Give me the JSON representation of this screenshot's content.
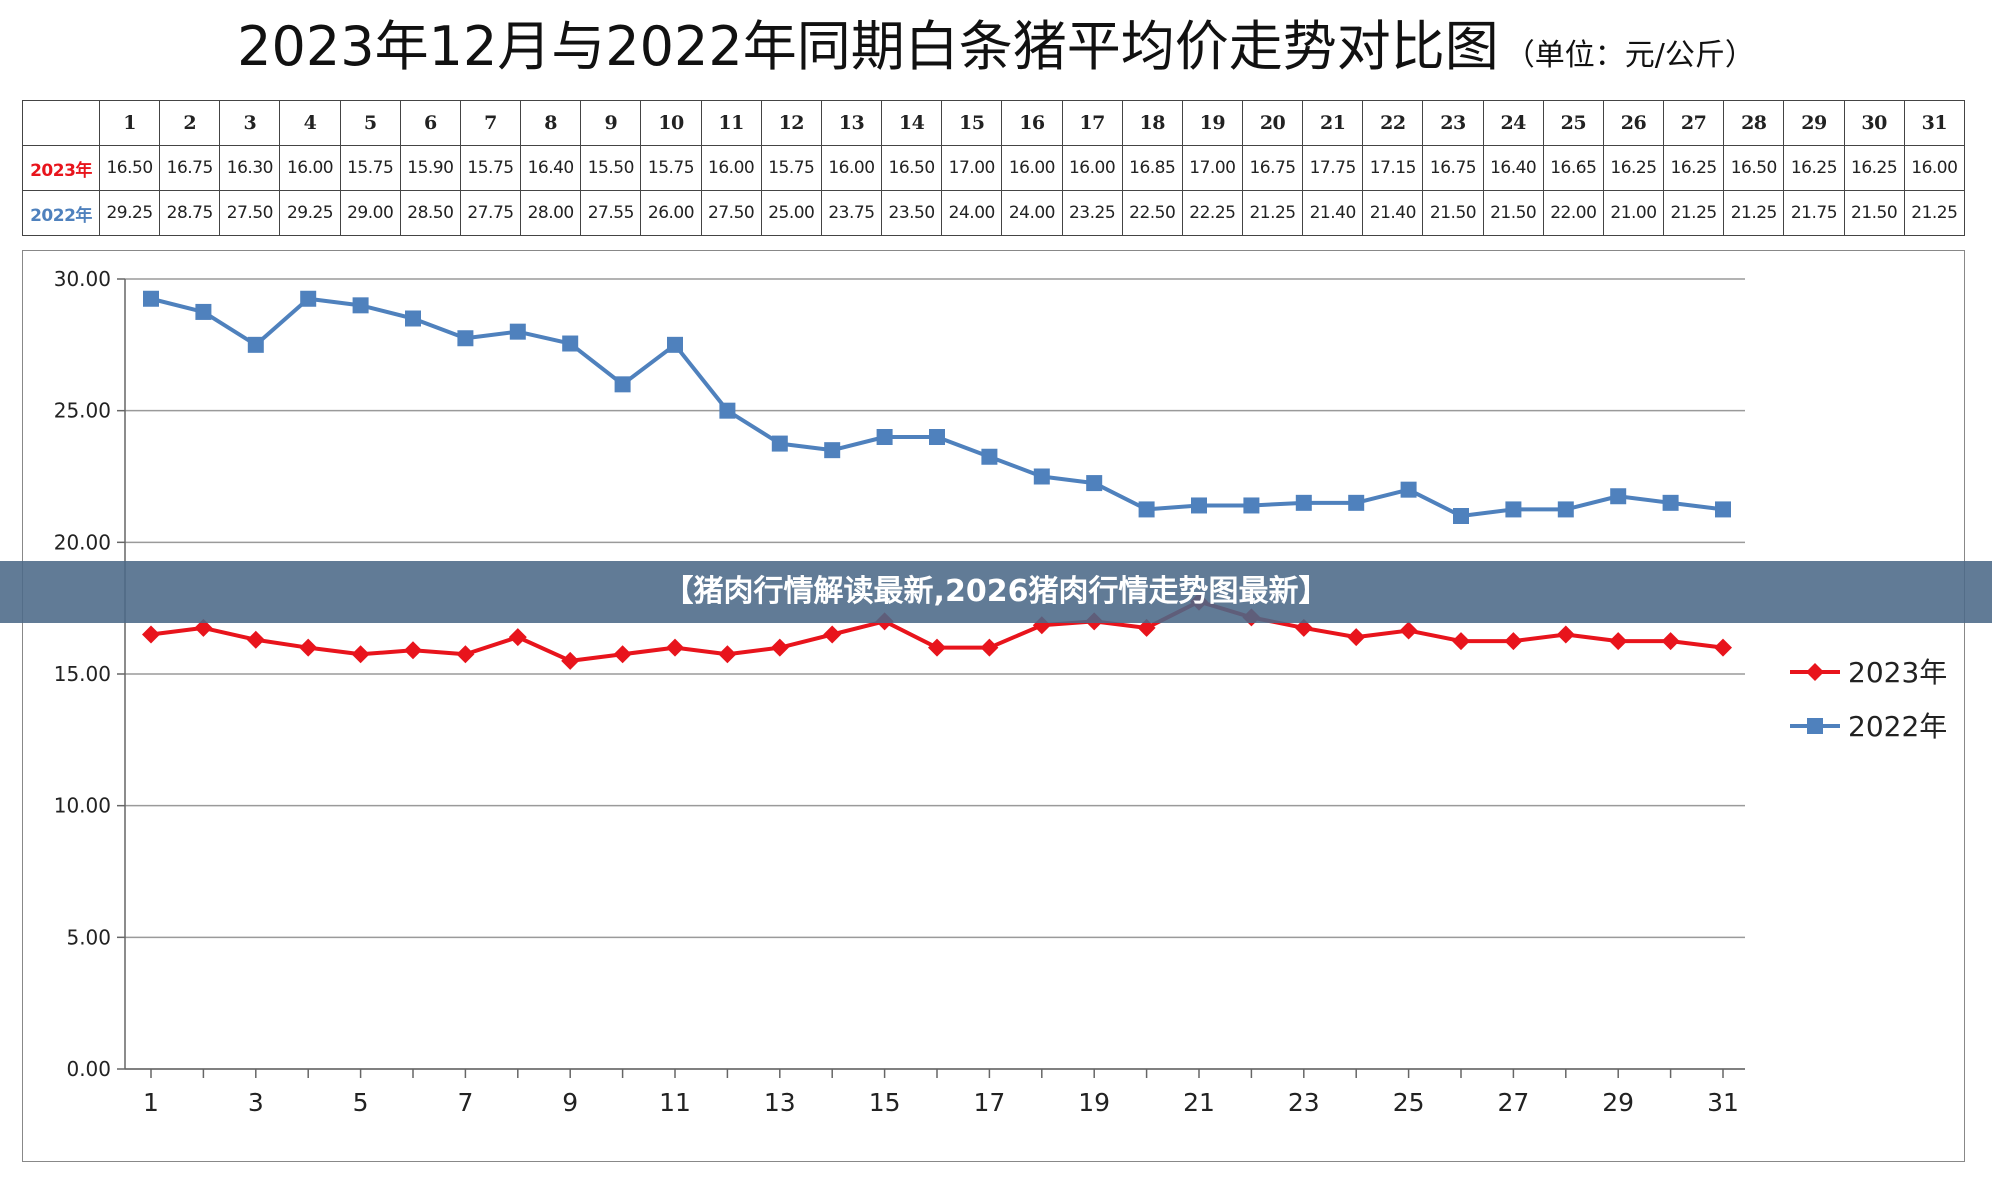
{
  "title": {
    "main": "2023年12月与2022年同期白条猪平均价走势对比图",
    "unit": "（单位：元/公斤）"
  },
  "banner": {
    "text": "【猪肉行情解读最新,2026猪肉行情走势图最新】"
  },
  "colors": {
    "series_2023": "#e8141c",
    "series_2022": "#4f81bd"
  },
  "table": {
    "days": [
      "1",
      "2",
      "3",
      "4",
      "5",
      "6",
      "7",
      "8",
      "9",
      "10",
      "11",
      "12",
      "13",
      "14",
      "15",
      "16",
      "17",
      "18",
      "19",
      "20",
      "21",
      "22",
      "23",
      "24",
      "25",
      "26",
      "27",
      "28",
      "29",
      "30",
      "31"
    ],
    "rows": [
      {
        "label": "2023年",
        "values": [
          "16.50",
          "16.75",
          "16.30",
          "16.00",
          "15.75",
          "15.90",
          "15.75",
          "16.40",
          "15.50",
          "15.75",
          "16.00",
          "15.75",
          "16.00",
          "16.50",
          "17.00",
          "16.00",
          "16.00",
          "16.85",
          "17.00",
          "16.75",
          "17.75",
          "17.15",
          "16.75",
          "16.40",
          "16.65",
          "16.25",
          "16.25",
          "16.50",
          "16.25",
          "16.25",
          "16.00"
        ]
      },
      {
        "label": "2022年",
        "values": [
          "29.25",
          "28.75",
          "27.50",
          "29.25",
          "29.00",
          "28.50",
          "27.75",
          "28.00",
          "27.55",
          "26.00",
          "27.50",
          "25.00",
          "23.75",
          "23.50",
          "24.00",
          "24.00",
          "23.25",
          "22.50",
          "22.25",
          "21.25",
          "21.40",
          "21.40",
          "21.50",
          "21.50",
          "22.00",
          "21.00",
          "21.25",
          "21.25",
          "21.75",
          "21.50",
          "21.25"
        ]
      }
    ]
  },
  "chart_data": {
    "type": "line",
    "x": [
      1,
      2,
      3,
      4,
      5,
      6,
      7,
      8,
      9,
      10,
      11,
      12,
      13,
      14,
      15,
      16,
      17,
      18,
      19,
      20,
      21,
      22,
      23,
      24,
      25,
      26,
      27,
      28,
      29,
      30,
      31
    ],
    "x_tick_labels": [
      "1",
      "3",
      "5",
      "7",
      "9",
      "11",
      "13",
      "15",
      "17",
      "19",
      "21",
      "23",
      "25",
      "27",
      "29",
      "31"
    ],
    "y_tick_labels": [
      "0.00",
      "5.00",
      "10.00",
      "15.00",
      "20.00",
      "25.00",
      "30.00"
    ],
    "ylim": [
      0,
      30
    ],
    "grid": "horizontal",
    "legend": "right",
    "series": [
      {
        "name": "2023年",
        "marker": "diamond",
        "values": [
          16.5,
          16.75,
          16.3,
          16.0,
          15.75,
          15.9,
          15.75,
          16.4,
          15.5,
          15.75,
          16.0,
          15.75,
          16.0,
          16.5,
          17.0,
          16.0,
          16.0,
          16.85,
          17.0,
          16.75,
          17.75,
          17.15,
          16.75,
          16.4,
          16.65,
          16.25,
          16.25,
          16.5,
          16.25,
          16.25,
          16.0
        ]
      },
      {
        "name": "2022年",
        "marker": "square",
        "values": [
          29.25,
          28.75,
          27.5,
          29.25,
          29.0,
          28.5,
          27.75,
          28.0,
          27.55,
          26.0,
          27.5,
          25.0,
          23.75,
          23.5,
          24.0,
          24.0,
          23.25,
          22.5,
          22.25,
          21.25,
          21.4,
          21.4,
          21.5,
          21.5,
          22.0,
          21.0,
          21.25,
          21.25,
          21.75,
          21.5,
          21.25
        ]
      }
    ]
  }
}
